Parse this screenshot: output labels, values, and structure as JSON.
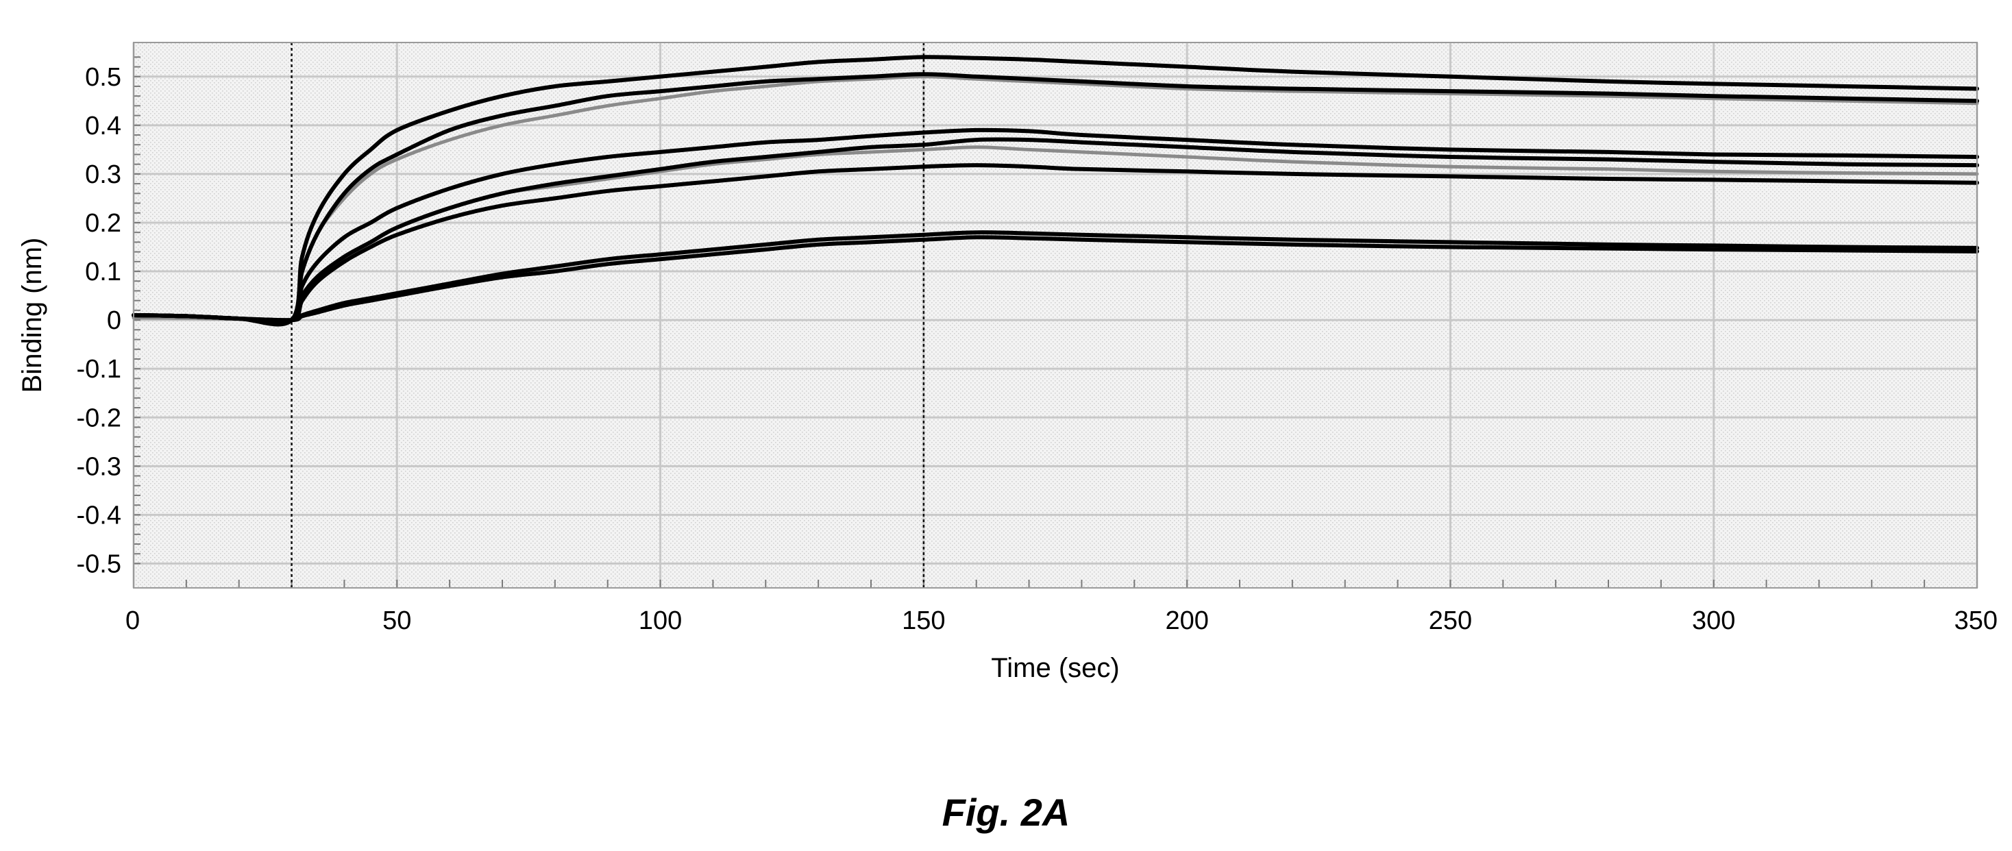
{
  "chart_data": {
    "type": "line",
    "title": "",
    "xlabel": "Time (sec)",
    "ylabel": "Binding (nm)",
    "caption": "Fig. 2A",
    "xlim": [
      0,
      350
    ],
    "ylim": [
      -0.55,
      0.57
    ],
    "xticks": [
      "0",
      "50",
      "100",
      "150",
      "200",
      "250",
      "300",
      "350"
    ],
    "yticks": [
      "0.5",
      "0.4",
      "0.3",
      "0.2",
      "0.1",
      "0",
      "-0.1",
      "-0.2",
      "-0.3",
      "-0.4",
      "-0.5"
    ],
    "grid": true,
    "legend": "none",
    "markers": [
      {
        "x": 30
      },
      {
        "x": 150
      }
    ],
    "colors": {
      "data": "#000000",
      "fit": "#8a8a8a",
      "grid": "#c8c8c8",
      "background": "#ececec"
    },
    "x": [
      0,
      10,
      20,
      30,
      32,
      35,
      40,
      45,
      50,
      60,
      70,
      80,
      90,
      100,
      110,
      120,
      130,
      140,
      150,
      160,
      170,
      180,
      200,
      220,
      250,
      280,
      300,
      325,
      350
    ],
    "series": [
      {
        "kind": "data",
        "values": [
          0.01,
          0.008,
          0.003,
          0.0,
          0.13,
          0.22,
          0.3,
          0.35,
          0.39,
          0.43,
          0.46,
          0.48,
          0.49,
          0.5,
          0.51,
          0.52,
          0.53,
          0.535,
          0.54,
          0.538,
          0.535,
          0.53,
          0.52,
          0.51,
          0.5,
          0.49,
          0.485,
          0.48,
          0.475
        ]
      },
      {
        "kind": "data",
        "values": [
          0.01,
          0.008,
          0.003,
          0.0,
          0.1,
          0.18,
          0.26,
          0.31,
          0.34,
          0.39,
          0.42,
          0.44,
          0.46,
          0.47,
          0.48,
          0.49,
          0.495,
          0.5,
          0.505,
          0.5,
          0.495,
          0.49,
          0.48,
          0.475,
          0.47,
          0.465,
          0.46,
          0.455,
          0.45
        ]
      },
      {
        "kind": "fit",
        "values": [
          0.005,
          0.004,
          0.002,
          0.0,
          0.1,
          0.18,
          0.25,
          0.3,
          0.33,
          0.37,
          0.4,
          0.42,
          0.44,
          0.455,
          0.47,
          0.48,
          0.49,
          0.495,
          0.5,
          0.495,
          0.49,
          0.485,
          0.475,
          0.47,
          0.465,
          0.46,
          0.455,
          0.45,
          0.445
        ]
      },
      {
        "kind": "data",
        "values": [
          0.01,
          0.008,
          0.003,
          0.0,
          0.07,
          0.12,
          0.17,
          0.2,
          0.23,
          0.27,
          0.3,
          0.32,
          0.335,
          0.345,
          0.355,
          0.365,
          0.37,
          0.378,
          0.385,
          0.39,
          0.388,
          0.38,
          0.37,
          0.36,
          0.35,
          0.345,
          0.34,
          0.338,
          0.335
        ]
      },
      {
        "kind": "data",
        "values": [
          0.01,
          0.008,
          0.003,
          0.0,
          0.05,
          0.09,
          0.13,
          0.16,
          0.19,
          0.23,
          0.26,
          0.28,
          0.295,
          0.31,
          0.325,
          0.335,
          0.345,
          0.355,
          0.36,
          0.37,
          0.37,
          0.365,
          0.355,
          0.345,
          0.335,
          0.33,
          0.325,
          0.32,
          0.318
        ]
      },
      {
        "kind": "fit",
        "values": [
          0.005,
          0.004,
          0.002,
          0.0,
          0.05,
          0.09,
          0.13,
          0.16,
          0.19,
          0.23,
          0.26,
          0.275,
          0.29,
          0.305,
          0.32,
          0.33,
          0.34,
          0.345,
          0.35,
          0.355,
          0.35,
          0.345,
          0.335,
          0.325,
          0.315,
          0.31,
          0.305,
          0.302,
          0.3
        ]
      },
      {
        "kind": "data",
        "values": [
          0.01,
          0.008,
          0.003,
          0.0,
          0.04,
          0.08,
          0.12,
          0.15,
          0.175,
          0.21,
          0.235,
          0.25,
          0.265,
          0.275,
          0.285,
          0.295,
          0.305,
          0.31,
          0.315,
          0.318,
          0.315,
          0.31,
          0.305,
          0.3,
          0.295,
          0.29,
          0.288,
          0.285,
          0.282
        ]
      },
      {
        "kind": "data",
        "values": [
          0.01,
          0.008,
          0.003,
          0.0,
          0.01,
          0.02,
          0.035,
          0.045,
          0.055,
          0.075,
          0.095,
          0.11,
          0.125,
          0.135,
          0.145,
          0.155,
          0.165,
          0.17,
          0.175,
          0.18,
          0.178,
          0.175,
          0.17,
          0.165,
          0.16,
          0.155,
          0.153,
          0.15,
          0.148
        ]
      },
      {
        "kind": "data",
        "values": [
          0.01,
          0.008,
          0.003,
          0.0,
          0.008,
          0.016,
          0.03,
          0.04,
          0.05,
          0.07,
          0.088,
          0.1,
          0.115,
          0.125,
          0.135,
          0.145,
          0.155,
          0.16,
          0.165,
          0.17,
          0.168,
          0.165,
          0.16,
          0.155,
          0.15,
          0.147,
          0.145,
          0.143,
          0.141
        ]
      }
    ]
  }
}
